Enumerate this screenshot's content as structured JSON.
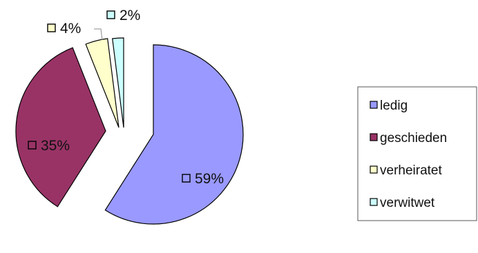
{
  "chart_data": {
    "type": "pie",
    "title": "",
    "legend_position": "right",
    "slices": [
      {
        "label": "ledig",
        "value": 59,
        "display": "59%",
        "color": "#9999ff"
      },
      {
        "label": "geschieden",
        "value": 35,
        "display": "35%",
        "color": "#993366"
      },
      {
        "label": "verheiratet",
        "value": 4,
        "display": "4%",
        "color": "#ffffcc"
      },
      {
        "label": "verwitwet",
        "value": 2,
        "display": "2%",
        "color": "#ccffff"
      }
    ]
  }
}
